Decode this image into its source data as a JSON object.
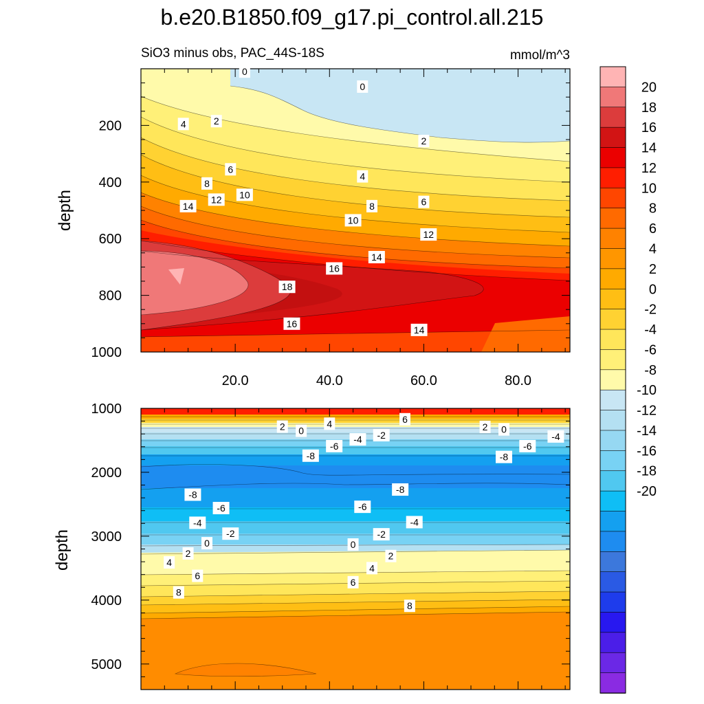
{
  "chart_data": {
    "type": "heatmap",
    "title": "b.e20.B1850.f09_g17.pi_control.all.215",
    "subtitle_left": "SiO3 minus obs, PAC_44S-18S",
    "units": "mmol/m^3",
    "ylabel": "depth",
    "colorbar": {
      "levels": [
        -20,
        -18,
        -16,
        -14,
        -12,
        -10,
        -8,
        -6,
        -4,
        -2,
        0,
        2,
        4,
        6,
        8,
        10,
        12,
        14,
        16,
        18,
        20
      ],
      "tick_labels": [
        "20",
        "18",
        "16",
        "14",
        "12",
        "10",
        "8",
        "6",
        "4",
        "2",
        "0",
        "-2",
        "-4",
        "-6",
        "-8",
        "-10",
        "-12",
        "-14",
        "-16",
        "-18",
        "-20"
      ],
      "colors": [
        "#8a2be2",
        "#6b28e6",
        "#4b1ee8",
        "#2818f0",
        "#1e3cec",
        "#2a5ae4",
        "#3c78dc",
        "#1e8cf0",
        "#14a0f0",
        "#0fbef5",
        "#50c8f0",
        "#78d2f4",
        "#96d8f2",
        "#b4e0f2",
        "#c8e6f4",
        "#fffaaa",
        "#fff078",
        "#ffe65a",
        "#ffd232",
        "#ffbe14",
        "#ffaa00",
        "#ff9600",
        "#ff8200",
        "#ff6a00",
        "#ff4600",
        "#ff1e00",
        "#eb0000",
        "#d21414",
        "#dc3c3c",
        "#f07878",
        "#ffb4b4"
      ]
    },
    "panels": [
      {
        "name": "upper",
        "xlim": [
          0,
          91
        ],
        "ylim": [
          1000,
          0
        ],
        "xticks": [
          20,
          40,
          60,
          80
        ],
        "xtick_labels": [
          "20.0",
          "40.0",
          "60.0",
          "80.0"
        ],
        "yticks": [
          200,
          400,
          600,
          800,
          1000
        ],
        "ytick_labels": [
          "200",
          "400",
          "600",
          "800",
          "1000"
        ],
        "contour_labels": [
          {
            "text": "0",
            "x": 22,
            "y": 10
          },
          {
            "text": "0",
            "x": 47,
            "y": 63
          },
          {
            "text": "2",
            "x": 16,
            "y": 185
          },
          {
            "text": "2",
            "x": 60,
            "y": 255
          },
          {
            "text": "4",
            "x": 9,
            "y": 195
          },
          {
            "text": "4",
            "x": 47,
            "y": 380
          },
          {
            "text": "6",
            "x": 19,
            "y": 355
          },
          {
            "text": "6",
            "x": 60,
            "y": 470
          },
          {
            "text": "8",
            "x": 14,
            "y": 405
          },
          {
            "text": "8",
            "x": 49,
            "y": 485
          },
          {
            "text": "10",
            "x": 22,
            "y": 445
          },
          {
            "text": "10",
            "x": 45,
            "y": 535
          },
          {
            "text": "12",
            "x": 16,
            "y": 462
          },
          {
            "text": "12",
            "x": 61,
            "y": 585
          },
          {
            "text": "14",
            "x": 10,
            "y": 485
          },
          {
            "text": "14",
            "x": 50,
            "y": 665
          },
          {
            "text": "14",
            "x": 59,
            "y": 922
          },
          {
            "text": "16",
            "x": 41,
            "y": 705
          },
          {
            "text": "16",
            "x": 32,
            "y": 900
          },
          {
            "text": "18",
            "x": 31,
            "y": 770
          }
        ]
      },
      {
        "name": "lower",
        "xlim": [
          0,
          91
        ],
        "ylim": [
          5400,
          1000
        ],
        "xticks": [
          20,
          40,
          60,
          80
        ],
        "xtick_labels": [
          "",
          "",
          "",
          ""
        ],
        "yticks": [
          1000,
          2000,
          3000,
          4000,
          5000
        ],
        "ytick_labels": [
          "1000",
          "2000",
          "3000",
          "4000",
          "5000"
        ],
        "contour_labels": [
          {
            "text": "2",
            "x": 30,
            "y": 1285
          },
          {
            "text": "0",
            "x": 34,
            "y": 1350
          },
          {
            "text": "4",
            "x": 40,
            "y": 1240
          },
          {
            "text": "6",
            "x": 56,
            "y": 1170
          },
          {
            "text": "2",
            "x": 73,
            "y": 1290
          },
          {
            "text": "0",
            "x": 77,
            "y": 1330
          },
          {
            "text": "-6",
            "x": 41,
            "y": 1590
          },
          {
            "text": "-4",
            "x": 46,
            "y": 1485
          },
          {
            "text": "-2",
            "x": 51,
            "y": 1420
          },
          {
            "text": "-8",
            "x": 36,
            "y": 1740
          },
          {
            "text": "-6",
            "x": 82,
            "y": 1590
          },
          {
            "text": "-4",
            "x": 88,
            "y": 1440
          },
          {
            "text": "-8",
            "x": 77,
            "y": 1760
          },
          {
            "text": "-8",
            "x": 11,
            "y": 2350
          },
          {
            "text": "-8",
            "x": 55,
            "y": 2270
          },
          {
            "text": "-6",
            "x": 17,
            "y": 2560
          },
          {
            "text": "-6",
            "x": 47,
            "y": 2540
          },
          {
            "text": "-4",
            "x": 12,
            "y": 2790
          },
          {
            "text": "-4",
            "x": 58,
            "y": 2780
          },
          {
            "text": "-2",
            "x": 19,
            "y": 2960
          },
          {
            "text": "-2",
            "x": 51,
            "y": 2970
          },
          {
            "text": "0",
            "x": 14,
            "y": 3110
          },
          {
            "text": "0",
            "x": 45,
            "y": 3130
          },
          {
            "text": "2",
            "x": 10,
            "y": 3270
          },
          {
            "text": "2",
            "x": 53,
            "y": 3310
          },
          {
            "text": "4",
            "x": 6,
            "y": 3410
          },
          {
            "text": "4",
            "x": 49,
            "y": 3500
          },
          {
            "text": "6",
            "x": 12,
            "y": 3620
          },
          {
            "text": "6",
            "x": 45,
            "y": 3720
          },
          {
            "text": "8",
            "x": 8,
            "y": 3880
          },
          {
            "text": "8",
            "x": 57,
            "y": 4090
          }
        ]
      }
    ]
  }
}
